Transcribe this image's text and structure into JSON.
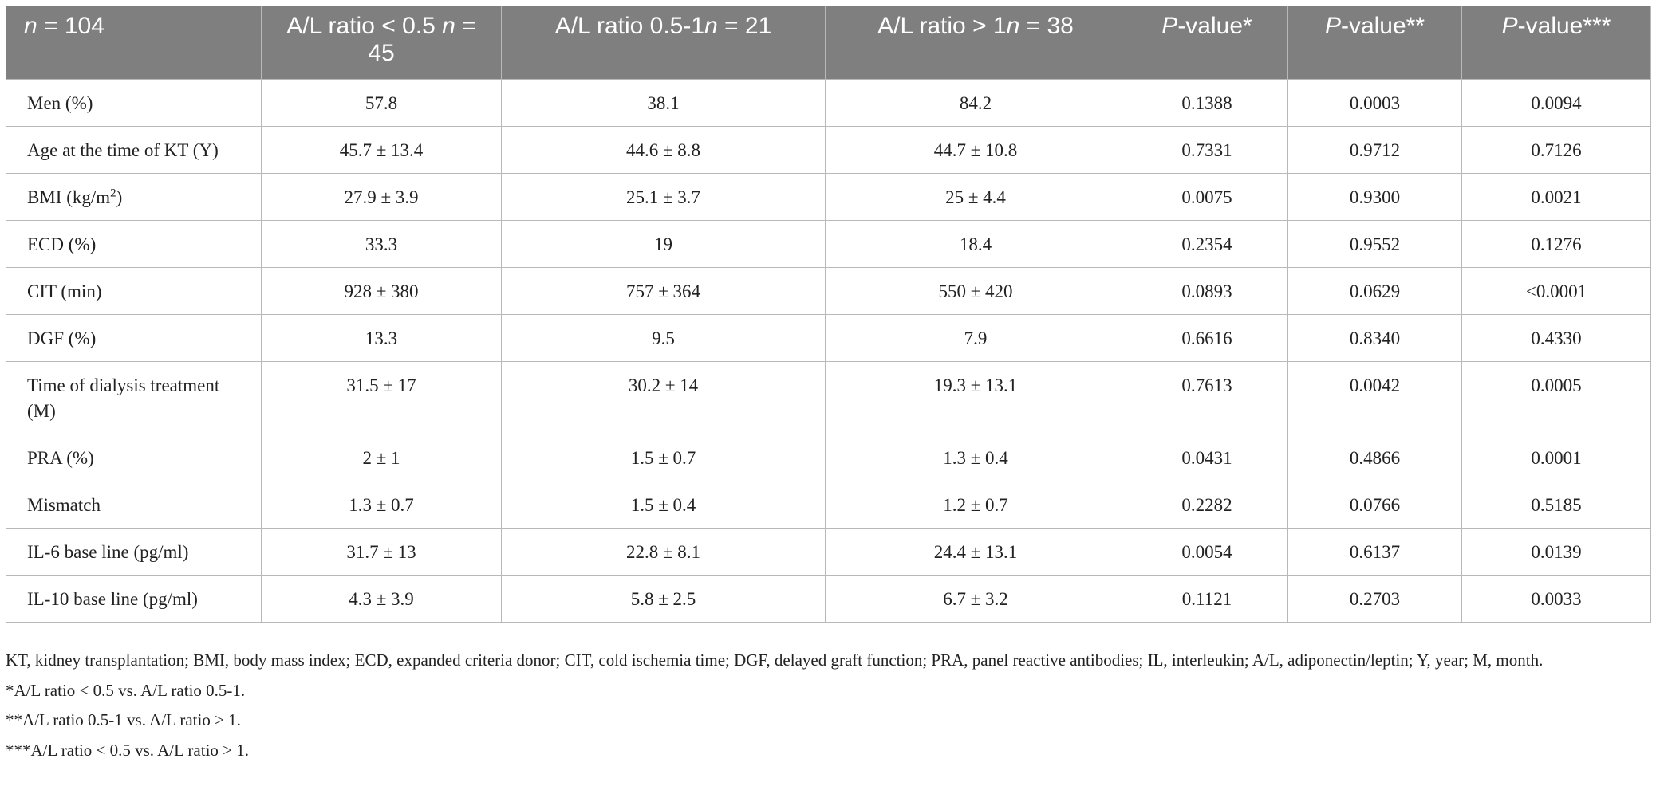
{
  "table": {
    "header": [
      [
        {
          "i": "n"
        },
        " = 104"
      ],
      [
        "A/L ratio < 0.5 ",
        {
          "i": "n"
        },
        " = 45"
      ],
      [
        "A/L ratio 0.5-1",
        {
          "i": "n"
        },
        " = 21"
      ],
      [
        "A/L ratio > 1",
        {
          "i": "n"
        },
        " = 38"
      ],
      [
        {
          "i": "P"
        },
        "-value*"
      ],
      [
        {
          "i": "P"
        },
        "-value**"
      ],
      [
        {
          "i": "P"
        },
        "-value***"
      ]
    ],
    "rows": [
      {
        "label": [
          "Men (%)"
        ],
        "cells": [
          "57.8",
          "38.1",
          "84.2",
          "0.1388",
          "0.0003",
          "0.0094"
        ]
      },
      {
        "label": [
          "Age at the time of KT (Y)"
        ],
        "cells": [
          "45.7 ± 13.4",
          "44.6 ± 8.8",
          "44.7 ± 10.8",
          "0.7331",
          "0.9712",
          "0.7126"
        ]
      },
      {
        "label": [
          "BMI (kg/m",
          {
            "sup": "2"
          },
          ")"
        ],
        "cells": [
          "27.9 ± 3.9",
          "25.1 ± 3.7",
          "25 ± 4.4",
          "0.0075",
          "0.9300",
          "0.0021"
        ]
      },
      {
        "label": [
          "ECD (%)"
        ],
        "cells": [
          "33.3",
          "19",
          "18.4",
          "0.2354",
          "0.9552",
          "0.1276"
        ]
      },
      {
        "label": [
          "CIT (min)"
        ],
        "cells": [
          "928 ± 380",
          "757 ± 364",
          "550 ± 420",
          "0.0893",
          "0.0629",
          "<0.0001"
        ]
      },
      {
        "label": [
          "DGF (%)"
        ],
        "cells": [
          "13.3",
          "9.5",
          "7.9",
          "0.6616",
          "0.8340",
          "0.4330"
        ]
      },
      {
        "label": [
          "Time of dialysis treatment (M)"
        ],
        "cells": [
          "31.5 ± 17",
          "30.2 ± 14",
          "19.3 ± 13.1",
          "0.7613",
          "0.0042",
          "0.0005"
        ]
      },
      {
        "label": [
          "PRA (%)"
        ],
        "cells": [
          "2 ± 1",
          "1.5 ± 0.7",
          "1.3 ± 0.4",
          "0.0431",
          "0.4866",
          "0.0001"
        ]
      },
      {
        "label": [
          "Mismatch"
        ],
        "cells": [
          "1.3 ± 0.7",
          "1.5 ± 0.4",
          "1.2 ± 0.7",
          "0.2282",
          "0.0766",
          "0.5185"
        ]
      },
      {
        "label": [
          "IL-6 base line (pg/ml)"
        ],
        "cells": [
          "31.7 ± 13",
          "22.8 ± 8.1",
          "24.4 ± 13.1",
          "0.0054",
          "0.6137",
          "0.0139"
        ]
      },
      {
        "label": [
          "IL-10 base line (pg/ml)"
        ],
        "cells": [
          "4.3 ± 3.9",
          "5.8 ± 2.5",
          "6.7 ± 3.2",
          "0.1121",
          "0.2703",
          "0.0033"
        ]
      }
    ]
  },
  "footnotes": [
    "KT, kidney transplantation; BMI, body mass index; ECD, expanded criteria donor; CIT, cold ischemia time; DGF, delayed graft function; PRA, panel reactive antibodies; IL, interleukin; A/L, adiponectin/leptin; Y, year; M, month.",
    "*A/L ratio < 0.5 vs. A/L ratio 0.5-1.",
    "**A/L ratio 0.5-1 vs. A/L ratio > 1.",
    "***A/L ratio < 0.5 vs. A/L ratio > 1."
  ]
}
